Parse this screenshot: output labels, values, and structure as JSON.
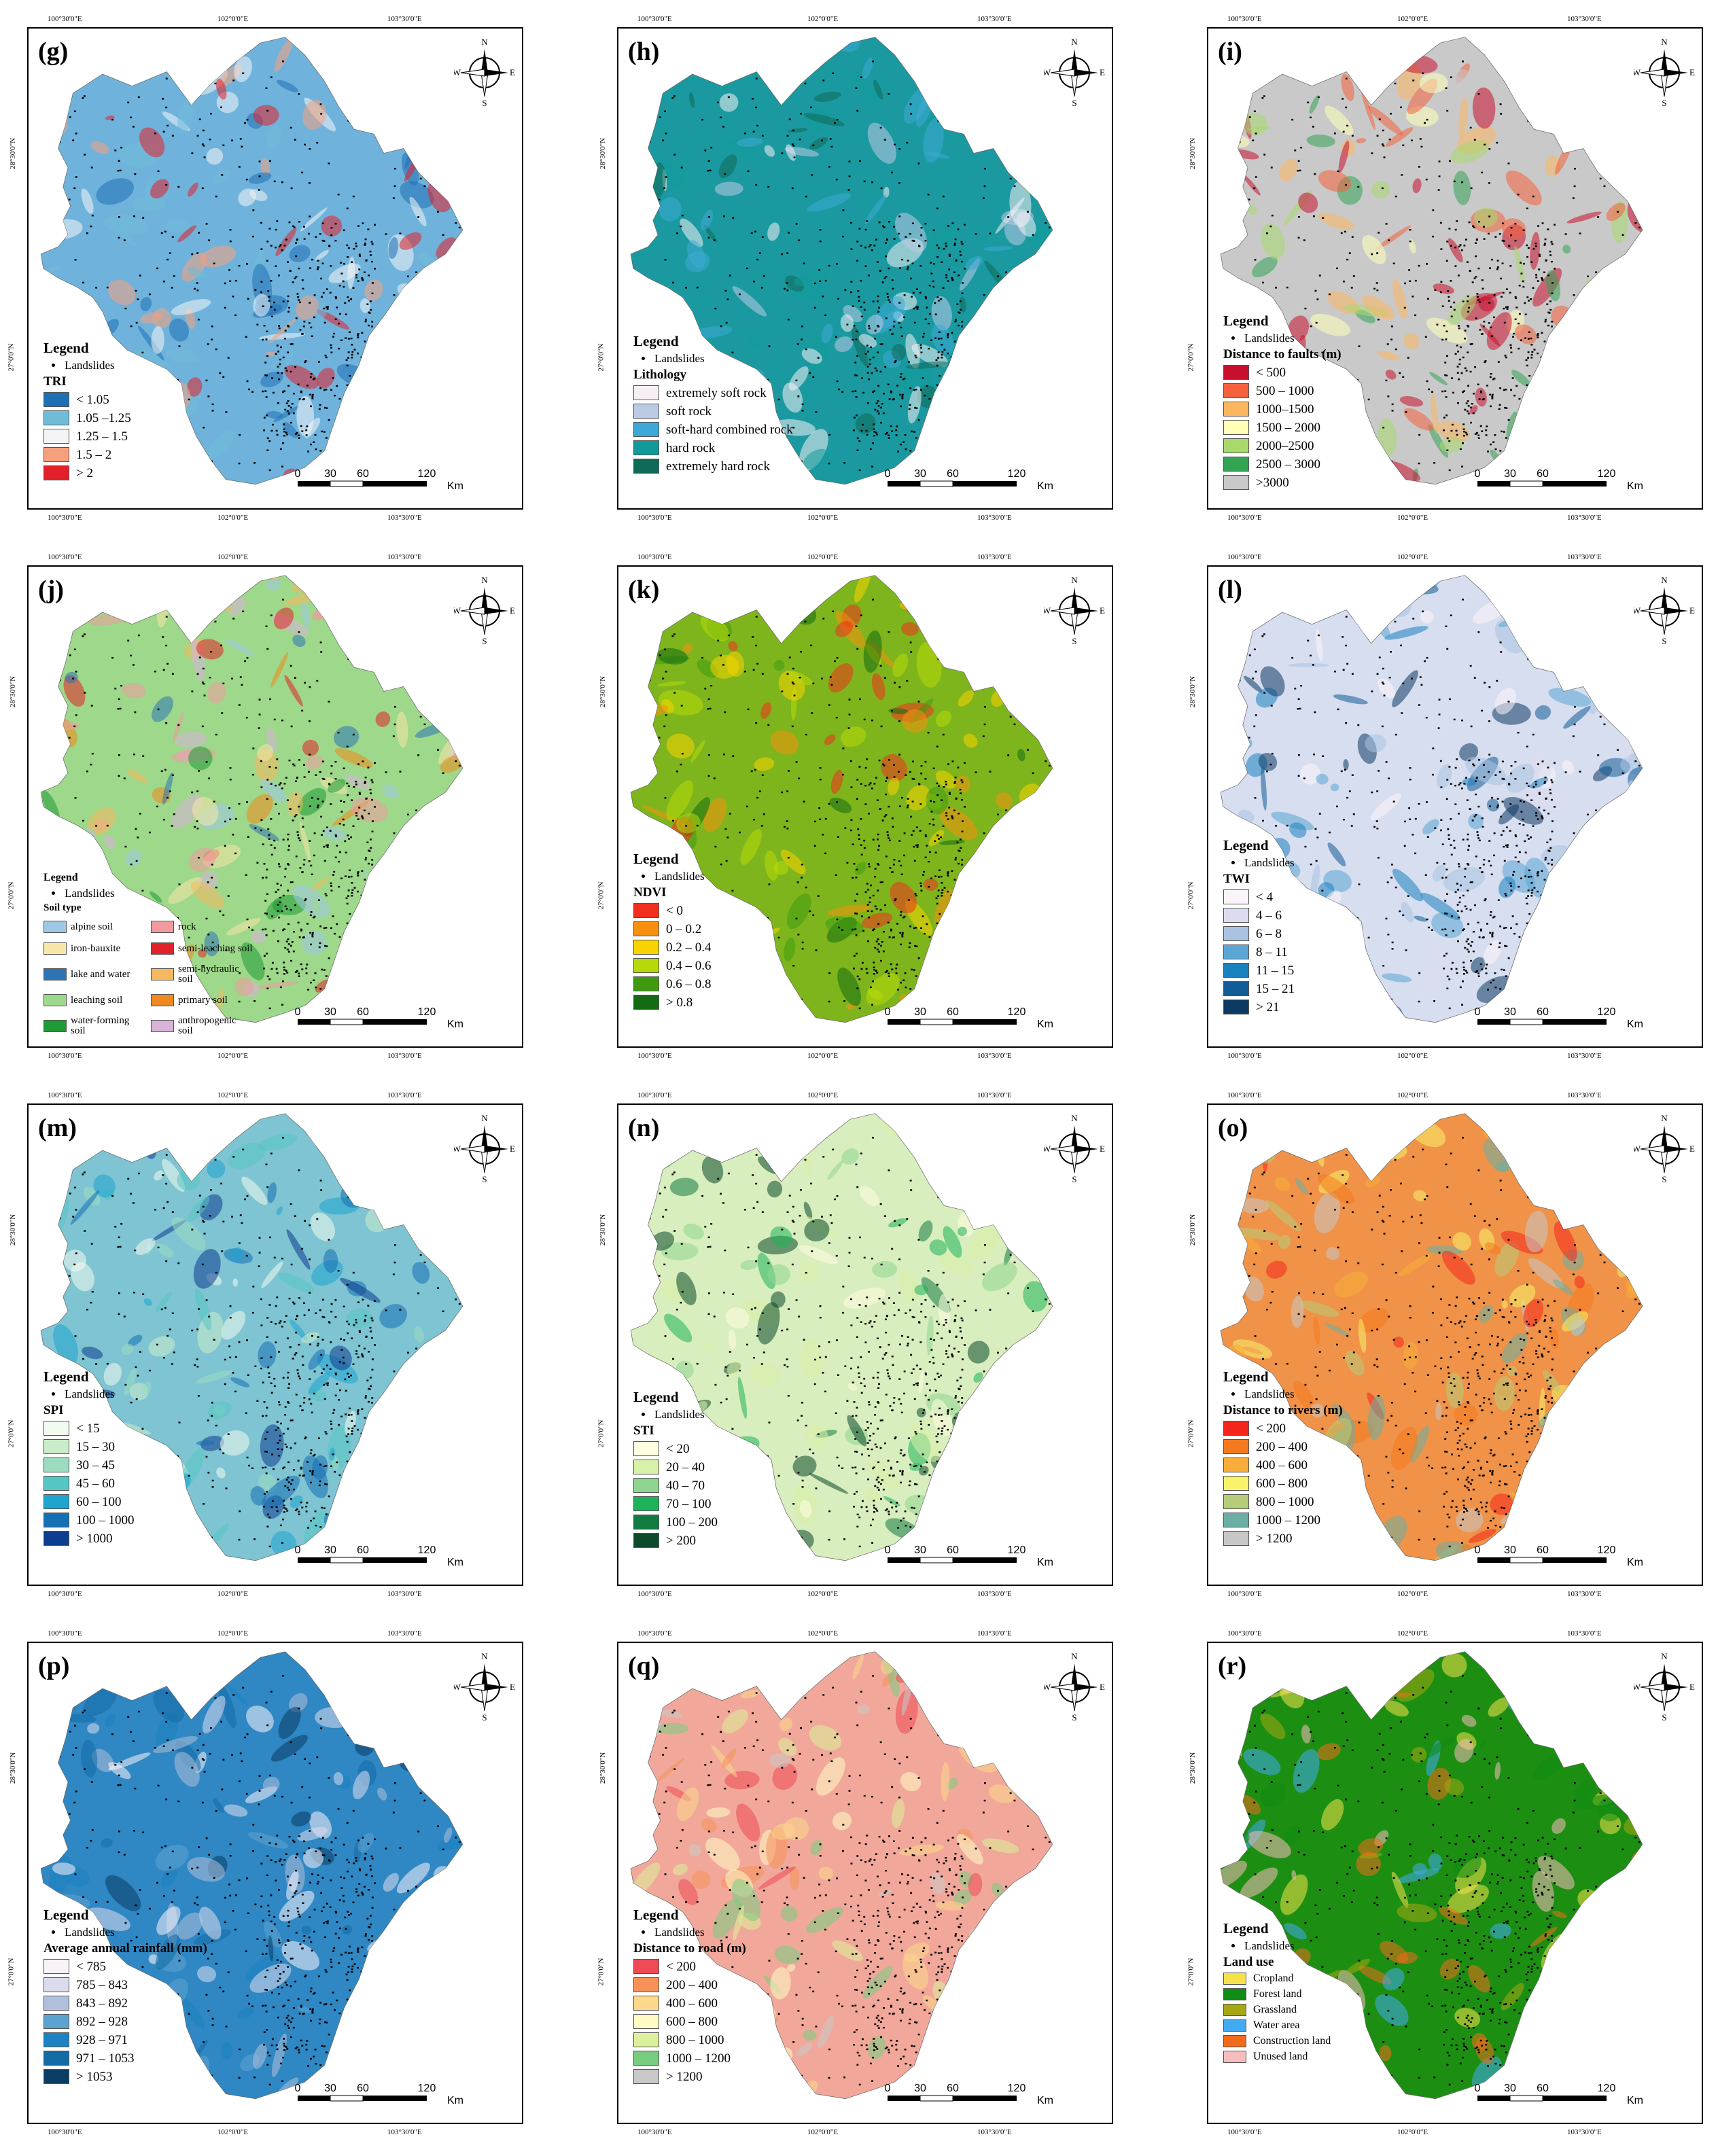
{
  "coords": {
    "top": [
      "100°30'0\"E",
      "102°0'0\"E",
      "103°30'0\"E"
    ],
    "left": [
      "28°30'0\"N",
      "27°0'0\"N"
    ]
  },
  "common": {
    "legend_title": "Legend",
    "landslides_label": "Landslides",
    "scale_ticks": [
      "0",
      "30",
      "60",
      "120"
    ],
    "scale_unit": "Km",
    "compass": {
      "n": "N",
      "s": "S",
      "e": "E",
      "w": "W"
    }
  },
  "panels": [
    {
      "label": "(g)",
      "base": "#6fb3dc",
      "legend_title": "TRI",
      "items": [
        {
          "label": "< 1.05",
          "color": "#1f6fb5"
        },
        {
          "label": "1.05 –1.25",
          "color": "#6fbcd9"
        },
        {
          "label": "1.25 – 1.5",
          "color": "#f4f4f6"
        },
        {
          "label": "1.5 – 2",
          "color": "#f6a17e"
        },
        {
          "label": "> 2",
          "color": "#e3202a"
        }
      ]
    },
    {
      "label": "(h)",
      "base": "#1a9aa0",
      "legend_title": "Lithology",
      "items": [
        {
          "label": "extremely soft rock",
          "color": "#f6f0f5"
        },
        {
          "label": "soft rock",
          "color": "#bccbe4"
        },
        {
          "label": "soft-hard combined rock",
          "color": "#3ea9d6"
        },
        {
          "label": "hard rock",
          "color": "#129a9a"
        },
        {
          "label": "extremely hard rock",
          "color": "#106a58"
        }
      ]
    },
    {
      "label": "(i)",
      "base": "#c9c9c9",
      "legend_title": "Distance to faults (m)",
      "items": [
        {
          "label": "< 500",
          "color": "#c8102e"
        },
        {
          "label": "500 – 1000",
          "color": "#f4613c"
        },
        {
          "label": "1000–1500",
          "color": "#fbb65f"
        },
        {
          "label": "1500 – 2000",
          "color": "#ffffb8"
        },
        {
          "label": "2000–2500",
          "color": "#a8d96d"
        },
        {
          "label": "2500 – 3000",
          "color": "#33a354"
        },
        {
          "label": ">3000",
          "color": "#c9c9c9"
        }
      ]
    },
    {
      "label": "(j)",
      "base": "#9ed88a",
      "legend_title": "Soil type",
      "grid": true,
      "items": [
        {
          "label": "alpine soil",
          "color": "#9ec9e6"
        },
        {
          "label": "iron-bauxite",
          "color": "#f7e6a8"
        },
        {
          "label": "lake and water",
          "color": "#2d74b5"
        },
        {
          "label": "leaching soil",
          "color": "#9ed88a"
        },
        {
          "label": "water-forming soil",
          "color": "#1e9b35"
        },
        {
          "label": "rock",
          "color": "#f19aa0"
        },
        {
          "label": "semi-leaching soil",
          "color": "#e2222a"
        },
        {
          "label": "semi-hydraulic soil",
          "color": "#f5b85e"
        },
        {
          "label": "primary soil",
          "color": "#f08a1e"
        },
        {
          "label": "anthropogenic soil",
          "color": "#d9b4d8"
        }
      ]
    },
    {
      "label": "(k)",
      "base": "#7fb51c",
      "legend_title": "NDVI",
      "items": [
        {
          "label": "< 0",
          "color": "#f0301e"
        },
        {
          "label": "0 – 0.2",
          "color": "#f7900e"
        },
        {
          "label": "0.2 – 0.4",
          "color": "#f7d400"
        },
        {
          "label": "0.4 – 0.6",
          "color": "#b7d80a"
        },
        {
          "label": "0.6 – 0.8",
          "color": "#3f9a10"
        },
        {
          "label": "> 0.8",
          "color": "#136a12"
        }
      ]
    },
    {
      "label": "(l)",
      "base": "#d7def0",
      "legend_title": "TWI",
      "items": [
        {
          "label": "< 4",
          "color": "#fbf4fa"
        },
        {
          "label": "4 – 6",
          "color": "#dcdcee"
        },
        {
          "label": "6 – 8",
          "color": "#aac3e2"
        },
        {
          "label": "8 – 11",
          "color": "#5aa5d3"
        },
        {
          "label": "11 – 15",
          "color": "#1b82c0"
        },
        {
          "label": "15 – 21",
          "color": "#135d97"
        },
        {
          "label": "> 21",
          "color": "#0c3a62"
        }
      ]
    },
    {
      "label": "(m)",
      "base": "#7ec4d2",
      "legend_title": "SPI",
      "items": [
        {
          "label": "< 15",
          "color": "#f2fbef"
        },
        {
          "label": "15 – 30",
          "color": "#cbecc8"
        },
        {
          "label": "30 – 45",
          "color": "#9bdcc1"
        },
        {
          "label": "45 – 60",
          "color": "#56c6c3"
        },
        {
          "label": "60 – 100",
          "color": "#1ea4cf"
        },
        {
          "label": "100 – 1000",
          "color": "#1670b4"
        },
        {
          "label": "> 1000",
          "color": "#0c3d8e"
        }
      ]
    },
    {
      "label": "(n)",
      "base": "#d9eebf",
      "legend_title": "STI",
      "items": [
        {
          "label": "< 20",
          "color": "#fffee0"
        },
        {
          "label": "20 – 40",
          "color": "#d8f0a8"
        },
        {
          "label": "40 – 70",
          "color": "#8fd58f"
        },
        {
          "label": "70 – 100",
          "color": "#1eb25a"
        },
        {
          "label": "100 – 200",
          "color": "#127b41"
        },
        {
          "label": "> 200",
          "color": "#0b4a2a"
        }
      ]
    },
    {
      "label": "(o)",
      "base": "#f09248",
      "legend_title": "Distance to rivers (m)",
      "items": [
        {
          "label": "< 200",
          "color": "#f4261c"
        },
        {
          "label": "200 – 400",
          "color": "#f57a1e"
        },
        {
          "label": "400 – 600",
          "color": "#f8ad3a"
        },
        {
          "label": "600 – 800",
          "color": "#f8f36a"
        },
        {
          "label": "800 – 1000",
          "color": "#b6cc78"
        },
        {
          "label": "1000 – 1200",
          "color": "#6aaea4"
        },
        {
          "label": "> 1200",
          "color": "#c7c7c7"
        }
      ]
    },
    {
      "label": "(p)",
      "base": "#2f87c3",
      "legend_title": "Average annual rainfall (mm)",
      "items": [
        {
          "label": "< 785",
          "color": "#f9f2f9"
        },
        {
          "label": "785 – 843",
          "color": "#dadcec"
        },
        {
          "label": "843 – 892",
          "color": "#b0bfdb"
        },
        {
          "label": "892 – 928",
          "color": "#5da3d0"
        },
        {
          "label": "928 – 971",
          "color": "#1c82c1"
        },
        {
          "label": "971 – 1053",
          "color": "#136ca6"
        },
        {
          "label": "> 1053",
          "color": "#0a3d64"
        }
      ]
    },
    {
      "label": "(q)",
      "base": "#f1a89a",
      "legend_title": "Distance to road (m)",
      "items": [
        {
          "label": "< 200",
          "color": "#ef4956"
        },
        {
          "label": "200 – 400",
          "color": "#f6915a"
        },
        {
          "label": "400 – 600",
          "color": "#fcd78c"
        },
        {
          "label": "600 – 800",
          "color": "#fefcc4"
        },
        {
          "label": "800 – 1000",
          "color": "#daf09a"
        },
        {
          "label": "1000 – 1200",
          "color": "#78cc80"
        },
        {
          "label": "> 1200",
          "color": "#c8c8c8"
        }
      ]
    },
    {
      "label": "(r)",
      "base": "#1c8f12",
      "legend_title": "Land use",
      "small": true,
      "items": [
        {
          "label": "Cropland",
          "color": "#f6e14a"
        },
        {
          "label": "Forest land",
          "color": "#0f8d12"
        },
        {
          "label": "Grassland",
          "color": "#a6a712"
        },
        {
          "label": "Water area",
          "color": "#43a9f1"
        },
        {
          "label": "Construction land",
          "color": "#f26b1a"
        },
        {
          "label": "Unused land",
          "color": "#f8bcbc"
        }
      ]
    }
  ]
}
